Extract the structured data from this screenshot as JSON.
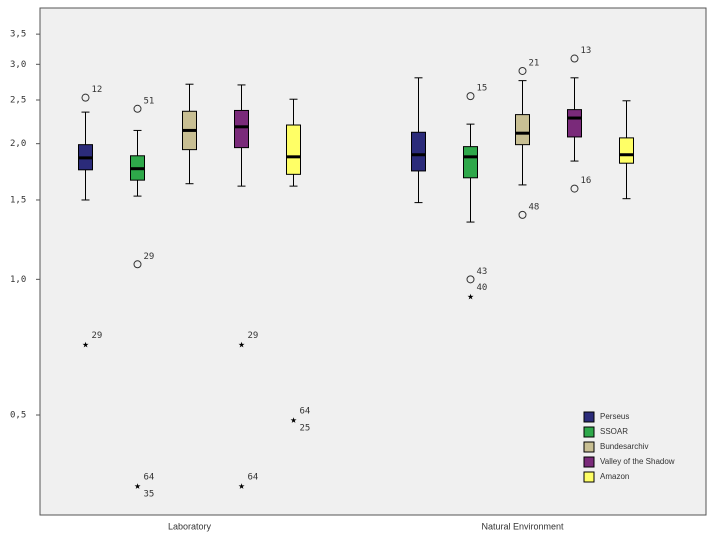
{
  "chart_data": {
    "type": "boxplot",
    "categories": [
      "Laboratory",
      "Natural Environment"
    ],
    "log_scale": true,
    "ylim": [
      0.3,
      4.0
    ],
    "yticks": [
      {
        "value": 0.5,
        "label": "0,5"
      },
      {
        "value": 1.0,
        "label": "1,0"
      },
      {
        "value": 1.5,
        "label": "1,5"
      },
      {
        "value": 2.0,
        "label": "2,0"
      },
      {
        "value": 2.5,
        "label": "2,5"
      },
      {
        "value": 3.0,
        "label": "3,0"
      },
      {
        "value": 3.5,
        "label": "3,5"
      }
    ],
    "legend": "bottom-right",
    "series": [
      {
        "name": "Perseus",
        "color": "#2b2b7a",
        "boxes": [
          {
            "whisker_low": 1.5,
            "q1": 1.75,
            "median": 1.86,
            "q3": 1.99,
            "whisker_high": 2.35
          },
          {
            "whisker_low": 1.48,
            "q1": 1.74,
            "median": 1.89,
            "q3": 2.12,
            "whisker_high": 2.8
          }
        ],
        "outliers": [
          [
            {
              "value": 2.53,
              "marker": "circle",
              "labels": [
                "12"
              ]
            },
            {
              "value": 0.72,
              "marker": "star",
              "labels": [
                "29"
              ]
            }
          ],
          []
        ]
      },
      {
        "name": "SSOAR",
        "color": "#2ea84a",
        "boxes": [
          {
            "whisker_low": 1.53,
            "q1": 1.66,
            "median": 1.76,
            "q3": 1.88,
            "whisker_high": 2.14
          },
          {
            "whisker_low": 1.34,
            "q1": 1.68,
            "median": 1.87,
            "q3": 1.97,
            "whisker_high": 2.21
          }
        ],
        "outliers": [
          [
            {
              "value": 2.39,
              "marker": "circle",
              "labels": [
                "51"
              ]
            },
            {
              "value": 1.08,
              "marker": "circle",
              "labels": [
                "29"
              ]
            },
            {
              "value": 0.35,
              "marker": "star",
              "labels": [
                "64",
                "35"
              ]
            }
          ],
          [
            {
              "value": 2.55,
              "marker": "circle",
              "labels": [
                "15"
              ]
            },
            {
              "value": 1.0,
              "marker": "circle",
              "labels": [
                "43"
              ]
            },
            {
              "value": 0.92,
              "marker": "star",
              "labels": [
                "40"
              ]
            }
          ]
        ]
      },
      {
        "name": "Bundesarchiv",
        "color": "#c8bf93",
        "boxes": [
          {
            "whisker_low": 1.63,
            "q1": 1.94,
            "median": 2.14,
            "q3": 2.36,
            "whisker_high": 2.71
          },
          {
            "whisker_low": 1.62,
            "q1": 1.99,
            "median": 2.11,
            "q3": 2.32,
            "whisker_high": 2.76
          }
        ],
        "outliers": [
          [],
          [
            {
              "value": 2.9,
              "marker": "circle",
              "labels": [
                "21"
              ]
            },
            {
              "value": 1.39,
              "marker": "circle",
              "labels": [
                "48"
              ]
            }
          ]
        ]
      },
      {
        "name": "Valley of the Shadow",
        "color": "#7a2a7a",
        "boxes": [
          {
            "whisker_low": 1.61,
            "q1": 1.96,
            "median": 2.18,
            "q3": 2.37,
            "whisker_high": 2.7
          },
          {
            "whisker_low": 1.83,
            "q1": 2.07,
            "median": 2.28,
            "q3": 2.38,
            "whisker_high": 2.8
          }
        ],
        "outliers": [
          [
            {
              "value": 0.72,
              "marker": "star",
              "labels": [
                "29"
              ]
            },
            {
              "value": 0.35,
              "marker": "star",
              "labels": [
                "64"
              ]
            }
          ],
          [
            {
              "value": 3.09,
              "marker": "circle",
              "labels": [
                "13"
              ]
            },
            {
              "value": 1.59,
              "marker": "circle",
              "labels": [
                "16"
              ]
            }
          ]
        ]
      },
      {
        "name": "Amazon",
        "color": "#ffff66",
        "boxes": [
          {
            "whisker_low": 1.61,
            "q1": 1.71,
            "median": 1.87,
            "q3": 2.2,
            "whisker_high": 2.51
          },
          {
            "whisker_low": 1.51,
            "q1": 1.81,
            "median": 1.89,
            "q3": 2.06,
            "whisker_high": 2.49
          }
        ],
        "outliers": [
          [
            {
              "value": 0.49,
              "marker": "star",
              "labels": [
                "64",
                "25"
              ]
            }
          ],
          []
        ]
      }
    ]
  }
}
